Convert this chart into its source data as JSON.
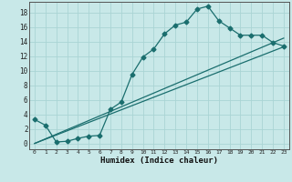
{
  "title": "",
  "xlabel": "Humidex (Indice chaleur)",
  "bg_color": "#c8e8e8",
  "line_color": "#1a6e6e",
  "grid_color": "#aad4d4",
  "xlim": [
    -0.5,
    23.5
  ],
  "ylim": [
    -0.8,
    19.5
  ],
  "xticks": [
    0,
    1,
    2,
    3,
    4,
    5,
    6,
    7,
    8,
    9,
    10,
    11,
    12,
    13,
    14,
    15,
    16,
    17,
    18,
    19,
    20,
    21,
    22,
    23
  ],
  "yticks": [
    0,
    2,
    4,
    6,
    8,
    10,
    12,
    14,
    16,
    18
  ],
  "curve1_x": [
    0,
    1,
    2,
    3,
    4,
    5,
    6,
    7,
    8,
    9,
    10,
    11,
    12,
    13,
    14,
    15,
    16,
    17,
    18,
    19,
    20,
    21,
    22,
    23
  ],
  "curve1_y": [
    3.3,
    2.5,
    0.2,
    0.3,
    0.7,
    1.0,
    1.1,
    4.7,
    5.7,
    9.5,
    11.9,
    13.0,
    15.1,
    16.3,
    16.7,
    18.5,
    18.9,
    16.9,
    15.9,
    14.9,
    14.9,
    14.9,
    13.9,
    13.4
  ],
  "curve2_x": [
    0,
    23
  ],
  "curve2_y": [
    0,
    14.5
  ],
  "curve3_x": [
    0,
    23
  ],
  "curve3_y": [
    0,
    13.3
  ]
}
